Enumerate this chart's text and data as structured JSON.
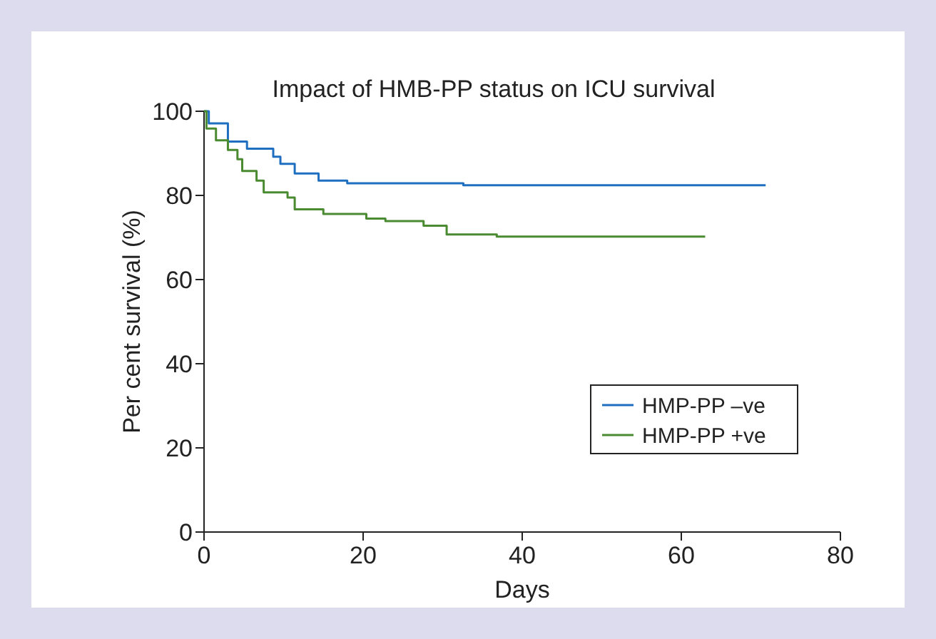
{
  "chart_data": {
    "type": "step",
    "title": "Impact of HMB-PP status on ICU survival",
    "xlabel": "Days",
    "ylabel": "Per cent survival (%)",
    "xlim": [
      0,
      80
    ],
    "xticks": [
      0,
      20,
      40,
      60,
      80
    ],
    "ylim": [
      0,
      100
    ],
    "yticks": [
      0,
      20,
      40,
      60,
      80,
      100
    ],
    "grid": false,
    "legend": "bottom right",
    "series": [
      {
        "name": "HMP-PP –ve",
        "color": "#1f6fc0",
        "x": [
          0,
          0.6,
          3,
          5.4,
          8.7,
          9.6,
          11.4,
          14.4,
          18,
          32.6,
          70.6
        ],
        "values": [
          100,
          97.1,
          92.8,
          91.1,
          89.2,
          87.5,
          85.2,
          83.5,
          82.9,
          82.4,
          82.4
        ]
      },
      {
        "name": "HMP-PP +ve",
        "color": "#4a8a30",
        "x": [
          0,
          0.3,
          1.5,
          3,
          4.2,
          4.8,
          6.6,
          7.5,
          10.5,
          11.4,
          15,
          20.4,
          22.8,
          27.6,
          30.5,
          36.8,
          63
        ],
        "values": [
          100,
          95.9,
          93.1,
          90.8,
          88.6,
          85.8,
          83.5,
          80.7,
          79.5,
          76.7,
          75.6,
          74.5,
          73.9,
          72.8,
          70.7,
          70.2,
          70.2
        ]
      }
    ]
  }
}
